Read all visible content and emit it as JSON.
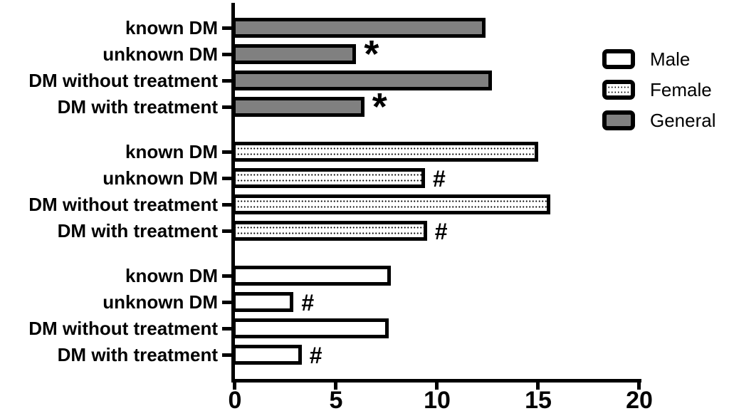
{
  "chart_data": {
    "type": "bar",
    "orientation": "horizontal",
    "title": "",
    "xlabel": "",
    "ylabel": "",
    "xlim": [
      0,
      20
    ],
    "x_ticks": [
      "0",
      "5",
      "10",
      "15",
      "20"
    ],
    "grid": false,
    "categories": [
      "known DM",
      "unknown DM",
      "DM without treatment",
      "DM with treatment"
    ],
    "series": [
      {
        "name": "General",
        "style": "gray",
        "values": [
          12.4,
          6.0,
          12.7,
          6.4
        ],
        "marks": [
          "",
          "*",
          "",
          "*"
        ]
      },
      {
        "name": "Female",
        "style": "dotted",
        "values": [
          15.0,
          9.4,
          15.6,
          9.5
        ],
        "marks": [
          "",
          "#",
          "",
          "#"
        ]
      },
      {
        "name": "Male",
        "style": "white",
        "values": [
          7.7,
          2.9,
          7.6,
          3.3
        ],
        "marks": [
          "",
          "#",
          "",
          "#"
        ]
      }
    ],
    "legend": {
      "position": "top-right",
      "items": [
        {
          "label": "Male",
          "style": "white"
        },
        {
          "label": "Female",
          "style": "dotted"
        },
        {
          "label": "General",
          "style": "gray"
        }
      ]
    },
    "annotation_symbols": [
      "*",
      "#"
    ],
    "colors": {
      "bar_gray": "#808080",
      "bar_outline": "#000000",
      "axis": "#000000",
      "background": "#ffffff"
    }
  }
}
